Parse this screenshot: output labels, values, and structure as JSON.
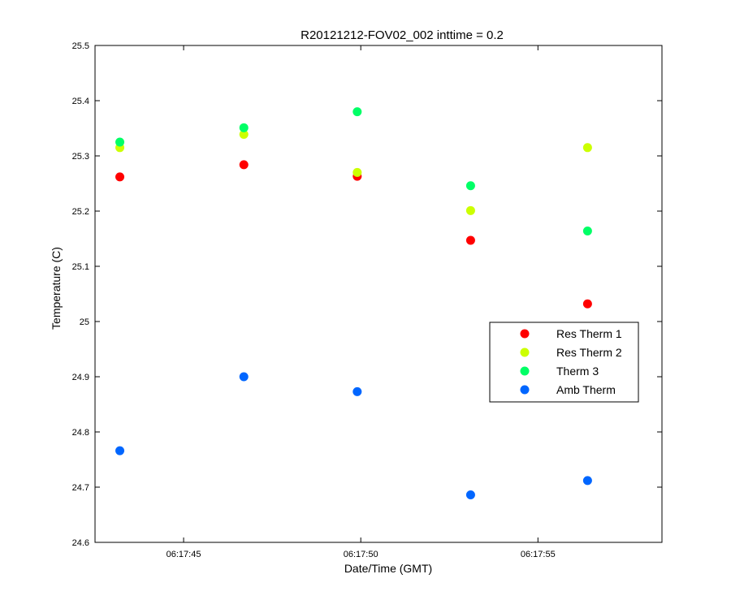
{
  "chart_data": {
    "type": "scatter",
    "title": "R20121212-FOV02_002 inttime = 0.2",
    "xlabel": "Date/Time (GMT)",
    "ylabel": "Temperature (C)",
    "xlim": [
      "06:17:42.5",
      "06:17:58.5"
    ],
    "ylim": [
      24.6,
      25.5
    ],
    "x_ticks": [
      "06:17:45",
      "06:17:50",
      "06:17:55"
    ],
    "y_ticks": [
      "24.6",
      "24.7",
      "24.8",
      "24.9",
      "25",
      "25.1",
      "25.2",
      "25.3",
      "25.4",
      "25.5"
    ],
    "grid": false,
    "legend_position": "right",
    "x": [
      "06:17:43.2",
      "06:17:46.7",
      "06:17:49.9",
      "06:17:53.1",
      "06:17:56.4"
    ],
    "series": [
      {
        "name": "Res Therm 1",
        "color": "#ff0000",
        "values": [
          25.262,
          25.284,
          25.263,
          25.147,
          25.032
        ]
      },
      {
        "name": "Res Therm 2",
        "color": "#ccff00",
        "values": [
          25.315,
          25.339,
          25.27,
          25.201,
          25.315
        ]
      },
      {
        "name": "Therm 3",
        "color": "#00ff66",
        "values": [
          25.325,
          25.351,
          25.38,
          25.246,
          25.164
        ]
      },
      {
        "name": "Amb Therm",
        "color": "#0066ff",
        "values": [
          24.766,
          24.9,
          24.873,
          24.686,
          24.712
        ]
      }
    ]
  }
}
